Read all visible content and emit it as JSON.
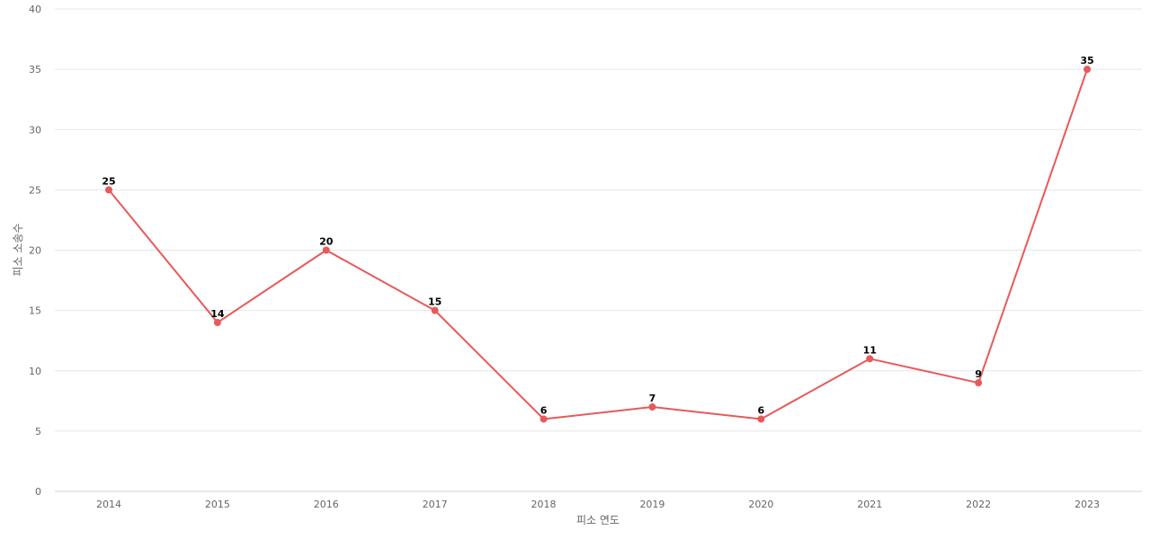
{
  "chart_data": {
    "type": "line",
    "title": "",
    "xlabel": "피소 연도",
    "ylabel": "피소 소송수",
    "categories": [
      "2014",
      "2015",
      "2016",
      "2017",
      "2018",
      "2019",
      "2020",
      "2021",
      "2022",
      "2023"
    ],
    "series": [
      {
        "values": [
          25,
          14,
          20,
          15,
          6,
          7,
          6,
          11,
          9,
          35
        ]
      }
    ],
    "ylim": [
      0,
      40
    ],
    "yticks": [
      0,
      5,
      10,
      15,
      20,
      25,
      30,
      35,
      40
    ],
    "grid": true,
    "data_labels": true,
    "legend": "none",
    "colors": {
      "series": "#e8595a",
      "grid": "#e6e6e6",
      "tick_text": "#666666",
      "label_text": "#000000"
    }
  }
}
